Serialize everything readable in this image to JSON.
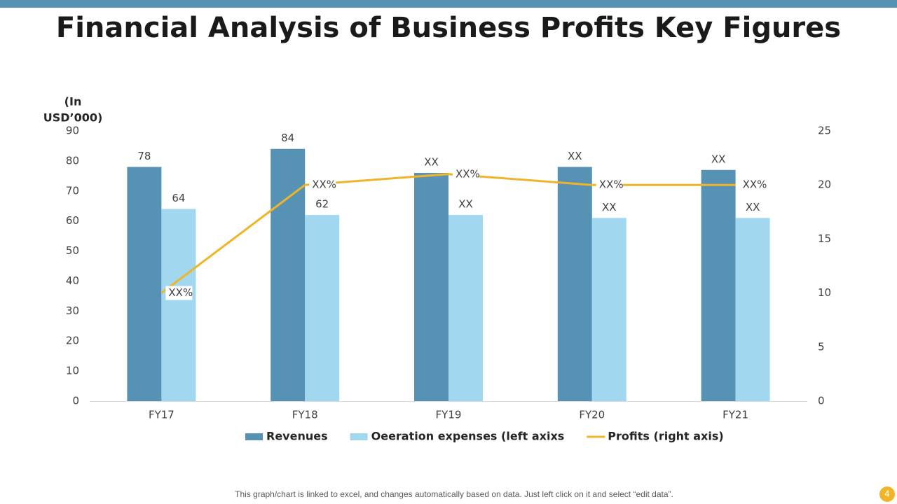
{
  "chart_data": {
    "type": "bar",
    "title": "Financial Analysis of Business Profits Key Figures",
    "y_label": [
      "(In",
      "USD’000)"
    ],
    "categories": [
      "FY17",
      "FY18",
      "FY19",
      "FY20",
      "FY21"
    ],
    "series": [
      {
        "name": "Revenues",
        "type": "bar",
        "color": "#5592b4",
        "values": [
          78,
          84,
          76,
          78,
          77
        ],
        "value_labels": [
          "78",
          "84",
          "XX",
          "XX",
          "XX"
        ]
      },
      {
        "name": "Oeeration expenses (left axixs",
        "type": "bar",
        "color": "#a1d8ef",
        "values": [
          64,
          62,
          62,
          61,
          61
        ],
        "value_labels": [
          "64",
          "62",
          "XX",
          "XX",
          "XX"
        ]
      },
      {
        "name": "Profits (right axis)",
        "type": "line",
        "axis": "y2",
        "color": "#f0b429",
        "values": [
          10,
          20,
          21,
          20,
          20
        ],
        "value_labels": [
          "XX%",
          "XX%",
          "XX%",
          "XX%",
          "XX%"
        ]
      }
    ],
    "ylim": [
      0,
      90
    ],
    "yticks": [
      0,
      10,
      20,
      30,
      40,
      50,
      60,
      70,
      80,
      90
    ],
    "y2lim": [
      0,
      25
    ],
    "y2ticks": [
      0,
      5,
      10,
      15,
      20,
      25
    ],
    "grid": false,
    "legend": "bottom"
  },
  "footer": {
    "note": "This graph/chart is linked to excel, and changes automatically based on data. Just left click on it and select “edit data”.",
    "page": 4
  }
}
